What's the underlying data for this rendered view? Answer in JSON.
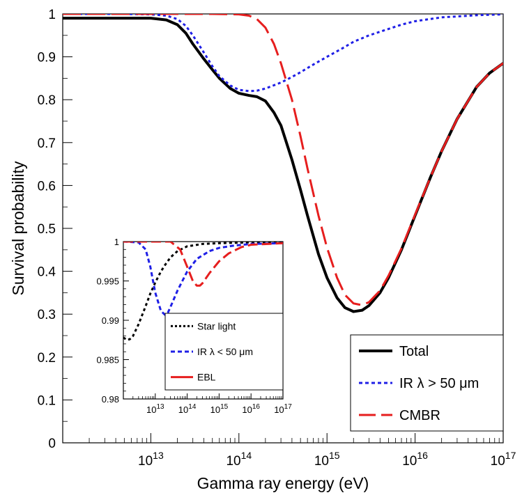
{
  "chart_data": [
    {
      "type": "line",
      "title": "",
      "xlabel": "Gamma ray energy (eV)",
      "ylabel": "Survival probability",
      "xscale": "log",
      "xlim": [
        1000000000000.0,
        1e+17
      ],
      "ylim": [
        0,
        1
      ],
      "grid": false,
      "legend_position": "bottom-right",
      "x_ticks": [
        {
          "value": 10000000000000.0,
          "base": "10",
          "exp": "13"
        },
        {
          "value": 100000000000000.0,
          "base": "10",
          "exp": "14"
        },
        {
          "value": 1000000000000000.0,
          "base": "10",
          "exp": "15"
        },
        {
          "value": 1e+16,
          "base": "10",
          "exp": "16"
        },
        {
          "value": 1e+17,
          "base": "10",
          "exp": "17"
        }
      ],
      "y_ticks": [
        {
          "value": 0,
          "label": "0"
        },
        {
          "value": 0.1,
          "label": "0.1"
        },
        {
          "value": 0.2,
          "label": "0.2"
        },
        {
          "value": 0.3,
          "label": "0.3"
        },
        {
          "value": 0.4,
          "label": "0.4"
        },
        {
          "value": 0.5,
          "label": "0.5"
        },
        {
          "value": 0.6,
          "label": "0.6"
        },
        {
          "value": 0.7,
          "label": "0.7"
        },
        {
          "value": 0.8,
          "label": "0.8"
        },
        {
          "value": 0.9,
          "label": "0.9"
        },
        {
          "value": 1,
          "label": "1"
        }
      ],
      "series": [
        {
          "name": "Total",
          "color": "#000000",
          "style": "solid",
          "points": [
            [
              1000000000000.0,
              0.99
            ],
            [
              3000000000000.0,
              0.99
            ],
            [
              10000000000000.0,
              0.99
            ],
            [
              15000000000000.0,
              0.986
            ],
            [
              20000000000000.0,
              0.975
            ],
            [
              25000000000000.0,
              0.955
            ],
            [
              30000000000000.0,
              0.93
            ],
            [
              40000000000000.0,
              0.895
            ],
            [
              50000000000000.0,
              0.87
            ],
            [
              60000000000000.0,
              0.85
            ],
            [
              80000000000000.0,
              0.826
            ],
            [
              100000000000000.0,
              0.815
            ],
            [
              130000000000000.0,
              0.81
            ],
            [
              160000000000000.0,
              0.807
            ],
            [
              200000000000000.0,
              0.797
            ],
            [
              250000000000000.0,
              0.77
            ],
            [
              300000000000000.0,
              0.74
            ],
            [
              400000000000000.0,
              0.66
            ],
            [
              500000000000000.0,
              0.59
            ],
            [
              600000000000000.0,
              0.53
            ],
            [
              800000000000000.0,
              0.44
            ],
            [
              1000000000000000.0,
              0.385
            ],
            [
              1300000000000000.0,
              0.338
            ],
            [
              1600000000000000.0,
              0.315
            ],
            [
              2000000000000000.0,
              0.306
            ],
            [
              2500000000000000.0,
              0.309
            ],
            [
              3000000000000000.0,
              0.32
            ],
            [
              4000000000000000.0,
              0.35
            ],
            [
              5000000000000000.0,
              0.385
            ],
            [
              7000000000000000.0,
              0.45
            ],
            [
              1e+16,
              0.53
            ],
            [
              1.5e+16,
              0.62
            ],
            [
              2e+16,
              0.68
            ],
            [
              3e+16,
              0.755
            ],
            [
              5e+16,
              0.83
            ],
            [
              7e+16,
              0.862
            ],
            [
              1e+17,
              0.885
            ]
          ]
        },
        {
          "name": "IR λ > 50 μm",
          "color": "#1f1fe6",
          "style": "dotted",
          "points": [
            [
              1000000000000.0,
              1.0
            ],
            [
              5000000000000.0,
              1.0
            ],
            [
              10000000000000.0,
              0.999
            ],
            [
              15000000000000.0,
              0.996
            ],
            [
              20000000000000.0,
              0.988
            ],
            [
              25000000000000.0,
              0.972
            ],
            [
              30000000000000.0,
              0.95
            ],
            [
              40000000000000.0,
              0.91
            ],
            [
              50000000000000.0,
              0.878
            ],
            [
              60000000000000.0,
              0.855
            ],
            [
              80000000000000.0,
              0.833
            ],
            [
              100000000000000.0,
              0.823
            ],
            [
              130000000000000.0,
              0.82
            ],
            [
              160000000000000.0,
              0.821
            ],
            [
              200000000000000.0,
              0.826
            ],
            [
              300000000000000.0,
              0.84
            ],
            [
              400000000000000.0,
              0.853
            ],
            [
              500000000000000.0,
              0.864
            ],
            [
              700000000000000.0,
              0.882
            ],
            [
              1000000000000000.0,
              0.9
            ],
            [
              1500000000000000.0,
              0.92
            ],
            [
              2000000000000000.0,
              0.935
            ],
            [
              3000000000000000.0,
              0.95
            ],
            [
              5000000000000000.0,
              0.965
            ],
            [
              7000000000000000.0,
              0.975
            ],
            [
              1e+16,
              0.983
            ],
            [
              2e+16,
              0.992
            ],
            [
              5e+16,
              0.997
            ],
            [
              1e+17,
              0.999
            ]
          ]
        },
        {
          "name": "CMBR",
          "color": "#e61e1e",
          "style": "dashed",
          "points": [
            [
              1000000000000.0,
              1.0
            ],
            [
              50000000000000.0,
              1.0
            ],
            [
              100000000000000.0,
              0.999
            ],
            [
              130000000000000.0,
              0.996
            ],
            [
              160000000000000.0,
              0.988
            ],
            [
              200000000000000.0,
              0.968
            ],
            [
              250000000000000.0,
              0.93
            ],
            [
              300000000000000.0,
              0.885
            ],
            [
              400000000000000.0,
              0.8
            ],
            [
              500000000000000.0,
              0.715
            ],
            [
              600000000000000.0,
              0.64
            ],
            [
              800000000000000.0,
              0.53
            ],
            [
              1000000000000000.0,
              0.455
            ],
            [
              1300000000000000.0,
              0.385
            ],
            [
              1600000000000000.0,
              0.345
            ],
            [
              2000000000000000.0,
              0.325
            ],
            [
              2500000000000000.0,
              0.321
            ],
            [
              3000000000000000.0,
              0.328
            ],
            [
              4000000000000000.0,
              0.355
            ],
            [
              5000000000000000.0,
              0.39
            ],
            [
              7000000000000000.0,
              0.453
            ],
            [
              1e+16,
              0.532
            ],
            [
              1.5e+16,
              0.62
            ],
            [
              2e+16,
              0.68
            ],
            [
              3e+16,
              0.755
            ],
            [
              5e+16,
              0.83
            ],
            [
              7e+16,
              0.862
            ],
            [
              1e+17,
              0.885
            ]
          ]
        }
      ],
      "legend_entries": [
        "Total",
        "IR λ > 50 μm",
        "CMBR"
      ]
    },
    {
      "type": "line",
      "title": "",
      "xscale": "log",
      "xlim": [
        1000000000000.0,
        1e+17
      ],
      "ylim": [
        0.98,
        1.0
      ],
      "grid": false,
      "legend_position": "bottom-right",
      "x_ticks": [
        {
          "value": 10000000000000.0,
          "base": "10",
          "exp": "13"
        },
        {
          "value": 100000000000000.0,
          "base": "10",
          "exp": "14"
        },
        {
          "value": 1000000000000000.0,
          "base": "10",
          "exp": "15"
        },
        {
          "value": 1e+16,
          "base": "10",
          "exp": "16"
        },
        {
          "value": 1e+17,
          "base": "10",
          "exp": "17"
        }
      ],
      "y_ticks": [
        {
          "value": 0.98,
          "label": "0.98"
        },
        {
          "value": 0.985,
          "label": "0.985"
        },
        {
          "value": 0.99,
          "label": "0.99"
        },
        {
          "value": 0.995,
          "label": "0.995"
        },
        {
          "value": 1.0,
          "label": "1"
        }
      ],
      "series": [
        {
          "name": "Star light",
          "color": "#000000",
          "style": "dotted",
          "points": [
            [
              1000000000000.0,
              0.9878
            ],
            [
              1300000000000.0,
              0.9875
            ],
            [
              1600000000000.0,
              0.9876
            ],
            [
              2000000000000.0,
              0.988
            ],
            [
              3000000000000.0,
              0.9895
            ],
            [
              5000000000000.0,
              0.9918
            ],
            [
              7000000000000.0,
              0.9934
            ],
            [
              10000000000000.0,
              0.9948
            ],
            [
              15000000000000.0,
              0.9962
            ],
            [
              20000000000000.0,
              0.997
            ],
            [
              30000000000000.0,
              0.998
            ],
            [
              50000000000000.0,
              0.9988
            ],
            [
              100000000000000.0,
              0.9994
            ],
            [
              300000000000000.0,
              0.9997
            ],
            [
              1000000000000000.0,
              0.9998
            ],
            [
              1e+16,
              0.9999
            ],
            [
              1e+17,
              0.9999
            ]
          ]
        },
        {
          "name": "IR λ < 50 μm",
          "color": "#1f1fe6",
          "style": "dashed-short",
          "points": [
            [
              1000000000000.0,
              1.0
            ],
            [
              3000000000000.0,
              0.9999
            ],
            [
              5000000000000.0,
              0.999
            ],
            [
              7000000000000.0,
              0.9968
            ],
            [
              10000000000000.0,
              0.9935
            ],
            [
              15000000000000.0,
              0.9912
            ],
            [
              20000000000000.0,
              0.9907
            ],
            [
              25000000000000.0,
              0.991
            ],
            [
              30000000000000.0,
              0.9917
            ],
            [
              50000000000000.0,
              0.9938
            ],
            [
              100000000000000.0,
              0.9962
            ],
            [
              200000000000000.0,
              0.9978
            ],
            [
              500000000000000.0,
              0.9988
            ],
            [
              1000000000000000.0,
              0.9992
            ],
            [
              3000000000000000.0,
              0.9995
            ],
            [
              1e+16,
              0.9997
            ],
            [
              1e+17,
              0.9998
            ]
          ]
        },
        {
          "name": "EBL",
          "color": "#e61e1e",
          "style": "dashed-long",
          "points": [
            [
              1000000000000.0,
              1.0
            ],
            [
              30000000000000.0,
              1.0
            ],
            [
              60000000000000.0,
              0.999
            ],
            [
              100000000000000.0,
              0.9968
            ],
            [
              150000000000000.0,
              0.995
            ],
            [
              200000000000000.0,
              0.9944
            ],
            [
              250000000000000.0,
              0.9944
            ],
            [
              300000000000000.0,
              0.9947
            ],
            [
              500000000000000.0,
              0.996
            ],
            [
              1000000000000000.0,
              0.9975
            ],
            [
              2000000000000000.0,
              0.9985
            ],
            [
              5000000000000000.0,
              0.9993
            ],
            [
              1e+16,
              0.9996
            ],
            [
              1e+17,
              0.9998
            ]
          ]
        }
      ],
      "legend_entries": [
        "Star light",
        "IR λ < 50 μm",
        "EBL"
      ]
    }
  ]
}
